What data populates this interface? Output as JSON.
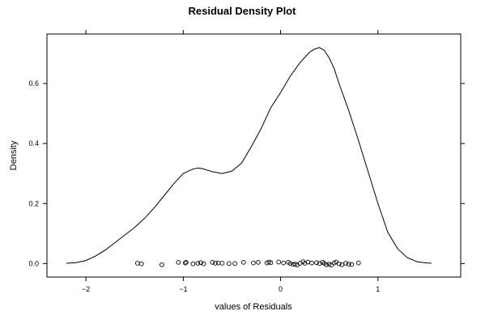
{
  "chart_data": {
    "type": "line",
    "title": "Residual Density Plot",
    "xlabel": "values of Residuals",
    "ylabel": "Density",
    "xlim": [
      -2.4,
      1.85
    ],
    "ylim": [
      -0.045,
      0.765
    ],
    "x_ticks": [
      -2,
      -1,
      0,
      1
    ],
    "x_tick_labels": [
      "−2",
      "−1",
      "0",
      "1"
    ],
    "y_ticks": [
      0.0,
      0.2,
      0.4,
      0.6
    ],
    "y_tick_labels": [
      "0.0",
      "0.2",
      "0.4",
      "0.6"
    ],
    "grid": false,
    "legend": "none",
    "series": [
      {
        "kind": "density-line",
        "x": [
          -2.2,
          -2.1,
          -2.0,
          -1.9,
          -1.8,
          -1.7,
          -1.6,
          -1.5,
          -1.4,
          -1.3,
          -1.2,
          -1.1,
          -1.0,
          -0.9,
          -0.85,
          -0.8,
          -0.7,
          -0.6,
          -0.5,
          -0.4,
          -0.3,
          -0.2,
          -0.1,
          0.0,
          0.1,
          0.2,
          0.3,
          0.35,
          0.4,
          0.45,
          0.5,
          0.55,
          0.6,
          0.7,
          0.8,
          0.9,
          1.0,
          1.1,
          1.2,
          1.3,
          1.4,
          1.5,
          1.55
        ],
        "y": [
          0.001,
          0.003,
          0.01,
          0.025,
          0.045,
          0.07,
          0.095,
          0.12,
          0.15,
          0.185,
          0.225,
          0.265,
          0.3,
          0.315,
          0.318,
          0.316,
          0.306,
          0.3,
          0.308,
          0.335,
          0.39,
          0.45,
          0.52,
          0.57,
          0.625,
          0.67,
          0.705,
          0.715,
          0.72,
          0.71,
          0.685,
          0.65,
          0.6,
          0.51,
          0.41,
          0.305,
          0.2,
          0.105,
          0.05,
          0.02,
          0.006,
          0.002,
          0.001
        ]
      },
      {
        "kind": "rug-points",
        "x": [
          -1.47,
          -1.43,
          -1.22,
          -1.05,
          -0.98,
          -0.97,
          -0.9,
          -0.85,
          -0.82,
          -0.79,
          -0.7,
          -0.67,
          -0.64,
          -0.6,
          -0.53,
          -0.47,
          -0.38,
          -0.28,
          -0.23,
          -0.14,
          -0.12,
          -0.1,
          -0.02,
          0.03,
          0.08,
          0.1,
          0.13,
          0.15,
          0.17,
          0.2,
          0.23,
          0.25,
          0.28,
          0.32,
          0.37,
          0.4,
          0.43,
          0.45,
          0.47,
          0.5,
          0.52,
          0.55,
          0.57,
          0.6,
          0.63,
          0.67,
          0.7,
          0.73,
          0.8
        ],
        "y": [
          0.001,
          -0.001,
          -0.004,
          0.004,
          0.002,
          0.004,
          -0.001,
          0.001,
          0.003,
          -0.001,
          0.004,
          0.001,
          0.002,
          0.001,
          0.0,
          0.0,
          0.004,
          0.002,
          0.004,
          0.002,
          0.005,
          0.003,
          0.005,
          0.002,
          0.004,
          0.0,
          -0.003,
          -0.002,
          -0.005,
          0.001,
          0.006,
          0.001,
          0.005,
          0.002,
          0.003,
          0.0,
          0.004,
          0.001,
          -0.004,
          -0.002,
          -0.005,
          0.002,
          0.005,
          -0.001,
          -0.004,
          0.001,
          -0.002,
          -0.003,
          0.002
        ]
      }
    ]
  }
}
